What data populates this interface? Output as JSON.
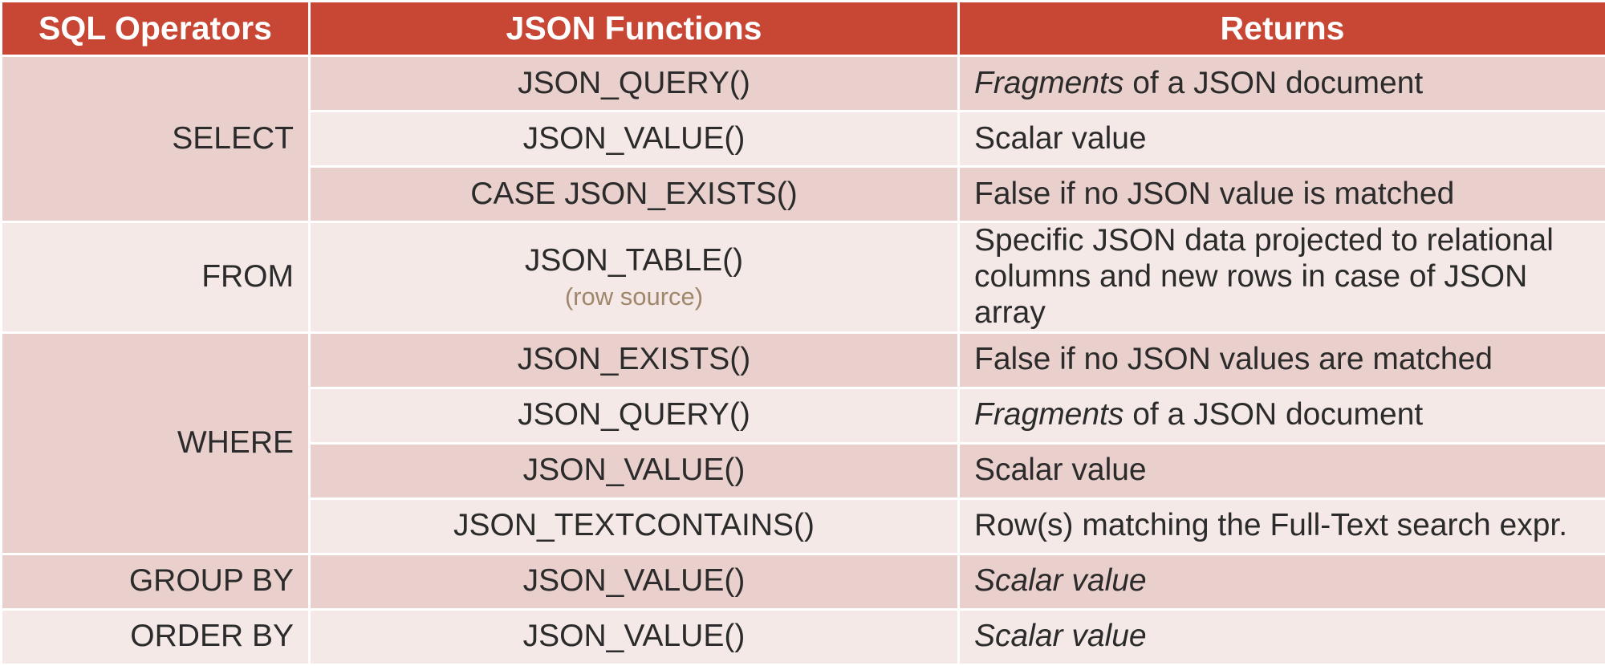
{
  "headers": {
    "col1": "SQL Operators",
    "col2": "JSON Functions",
    "col3": "Returns"
  },
  "groups": {
    "select": "SELECT",
    "from": "FROM",
    "where": "WHERE",
    "group_by": "GROUP BY",
    "order_by": "ORDER BY"
  },
  "rows": [
    {
      "function": "JSON_QUERY()",
      "returns_em": "Fragments",
      "returns": " of a JSON document"
    },
    {
      "function": "JSON_VALUE()",
      "returns": "Scalar value"
    },
    {
      "function": "CASE JSON_EXISTS()",
      "returns": "False if no JSON value is matched"
    },
    {
      "function": "JSON_TABLE()",
      "function_note": "(row source)",
      "returns": "Specific JSON data projected to relational columns and new rows in case of JSON array"
    },
    {
      "function": "JSON_EXISTS()",
      "returns": "False if no JSON values are matched"
    },
    {
      "function": "JSON_QUERY()",
      "returns_em": "Fragments",
      "returns": " of a JSON document"
    },
    {
      "function": "JSON_VALUE()",
      "returns": "Scalar value"
    },
    {
      "function": "JSON_TEXTCONTAINS()",
      "returns": "Row(s) matching the Full-Text search expr."
    },
    {
      "function": "JSON_VALUE()",
      "returns": "Scalar value"
    },
    {
      "function": "JSON_VALUE()",
      "returns": "Scalar value"
    }
  ],
  "colors": {
    "header_bg": "#c74634",
    "row_dark": "#ead0cc",
    "row_light": "#f4e9e7",
    "note_text": "#a0876c"
  }
}
